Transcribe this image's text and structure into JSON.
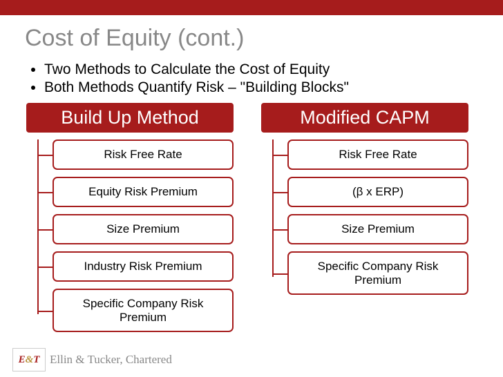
{
  "colors": {
    "accent": "#a61c1c",
    "title_gray": "#888888",
    "text": "#000000",
    "white": "#ffffff",
    "logo_gold": "#b8923a"
  },
  "top_bar_height": 22,
  "title": "Cost of Equity (cont.)",
  "title_fontsize": 34,
  "bullets": [
    "Two Methods to Calculate the Cost of Equity",
    "Both Methods Quantify Risk – \"Building Blocks\""
  ],
  "bullet_fontsize": 21,
  "columns": [
    {
      "header": "Build Up Method",
      "items": [
        "Risk Free Rate",
        "Equity Risk Premium",
        "Size Premium",
        "Industry Risk Premium",
        "Specific Company Risk Premium"
      ]
    },
    {
      "header": "Modified CAPM",
      "items": [
        "Risk Free Rate",
        "(β x ERP)",
        "Size Premium",
        "Specific Company Risk Premium"
      ]
    }
  ],
  "header_fontsize": 27,
  "item_fontsize": 17,
  "item_border_radius": 7,
  "item_border_width": 2,
  "item_row_height": 54,
  "connector_indent": 16,
  "footer": {
    "logo_e": "E",
    "logo_amp": "&",
    "logo_t": "T",
    "text": "Ellin & Tucker, Chartered"
  }
}
